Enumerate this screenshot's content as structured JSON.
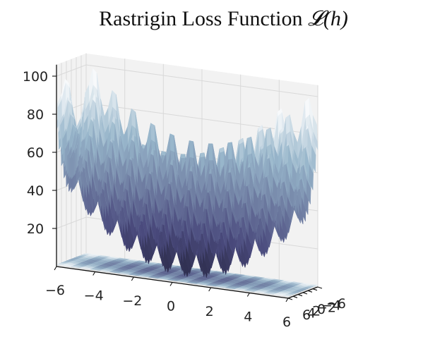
{
  "chart_data": {
    "type": "surface3d",
    "title": "Rastrigin Loss Function",
    "title_math": "𝓛(h)",
    "function": "rastrigin",
    "params": {
      "A": 10
    },
    "xlim": [
      -6,
      6
    ],
    "ylim": [
      -6,
      6
    ],
    "zlim": [
      0,
      100
    ],
    "x_ticks": [
      -6,
      -4,
      -2,
      0,
      2,
      4,
      6
    ],
    "y_ticks": [
      -6,
      -4,
      -2,
      0,
      2,
      4,
      6
    ],
    "z_ticks": [
      20,
      40,
      60,
      80,
      100
    ],
    "x_tick_labels": [
      "−6",
      "−4",
      "−2",
      "0",
      "2",
      "4",
      "6"
    ],
    "y_tick_labels": [
      "−6",
      "−4",
      "−2",
      "0",
      "2",
      "4",
      "6"
    ],
    "z_tick_labels": [
      "20",
      "40",
      "60",
      "80",
      "100"
    ],
    "colormap": "bone",
    "contour_on_floor": true,
    "grid": true,
    "colors": {
      "pane": "#f2f2f2",
      "grid": "#d9d9d9",
      "surface_low": "#2c2c3e",
      "surface_high": "#eefafa"
    }
  }
}
